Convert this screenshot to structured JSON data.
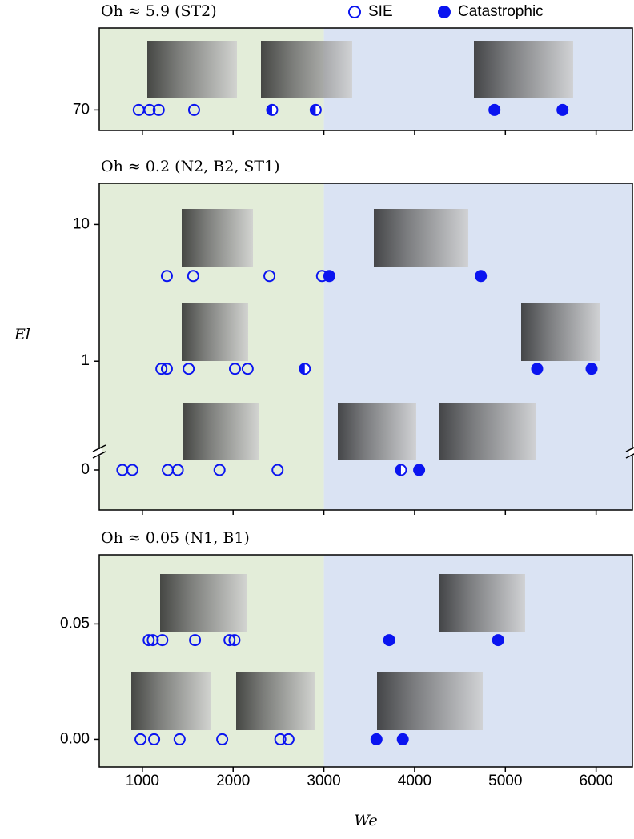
{
  "chart_data": [
    {
      "type": "scatter",
      "title": "Oh ≈ 5.9 (ST2)",
      "xlim": [
        525,
        6400
      ],
      "ylim": [
        68,
        78
      ],
      "yticks": [
        70
      ],
      "shade_split": 3000,
      "shade_colors": [
        "#e3edd9",
        "#dae3f3"
      ],
      "series": [
        {
          "name": "SIE",
          "marker": "open",
          "color": "#0a14f0",
          "x": [
            960,
            1080,
            1180,
            1570
          ],
          "y": [
            70,
            70,
            70,
            70
          ]
        },
        {
          "name": "Catastrophic",
          "marker": "filled",
          "color": "#0a14f0",
          "x": [
            4880,
            5630
          ],
          "y": [
            70,
            70
          ]
        },
        {
          "marker": "half",
          "color": "#0a14f0",
          "x": [
            2430,
            2910
          ],
          "y": [
            70,
            70
          ]
        }
      ]
    },
    {
      "type": "scatter",
      "title": "Oh ≈ 0.2 (N2, B2, ST1)",
      "y_label": "El",
      "xlim": [
        525,
        6400
      ],
      "ylim": [
        0.21,
        20
      ],
      "log_scale": true,
      "axis_break": true,
      "yticks": [
        10,
        1,
        0
      ],
      "shade_split": 3000,
      "shade_colors": [
        "#e3edd9",
        "#dae3f3"
      ],
      "series": [
        {
          "marker": "open",
          "color": "#0a14f0",
          "x": [
            1270,
            1560,
            2400,
            2980,
            1210,
            1270,
            1510,
            2020,
            2160,
            780,
            890,
            1280,
            1390,
            1850,
            2490
          ],
          "y": [
            4.2,
            4.2,
            4.2,
            4.2,
            0.88,
            0.88,
            0.88,
            0.88,
            0.88,
            0,
            0,
            0,
            0,
            0,
            0
          ]
        },
        {
          "marker": "filled",
          "color": "#0a14f0",
          "x": [
            3060,
            4730,
            5350,
            5950,
            4050
          ],
          "y": [
            4.2,
            4.2,
            0.88,
            0.88,
            0
          ]
        },
        {
          "marker": "half",
          "color": "#0a14f0",
          "x": [
            2790,
            3850
          ],
          "y": [
            0.88,
            0
          ]
        }
      ]
    },
    {
      "type": "scatter",
      "title": "Oh ≈ 0.05 (N1, B1)",
      "x_label": "We",
      "xlim": [
        525,
        6400
      ],
      "ylim": [
        -0.012,
        0.08
      ],
      "xticks": [
        1000,
        2000,
        3000,
        4000,
        5000,
        6000
      ],
      "yticks": [
        {
          "value": 0,
          "label": "0.00"
        },
        0.05
      ],
      "shade_split": 3000,
      "shade_colors": [
        "#e3edd9",
        "#dae3f3"
      ],
      "series": [
        {
          "marker": "open",
          "color": "#0a14f0",
          "x": [
            1070,
            1115,
            1220,
            1580,
            1960,
            2015,
            980,
            1130,
            1410,
            1880,
            2520,
            2610
          ],
          "y": [
            0.043,
            0.043,
            0.043,
            0.043,
            0.043,
            0.043,
            0,
            0,
            0,
            0,
            0,
            0
          ]
        },
        {
          "marker": "filled",
          "color": "#0a14f0",
          "x": [
            3720,
            4920,
            3580,
            3870
          ],
          "y": [
            0.043,
            0.043,
            0,
            0
          ]
        }
      ]
    }
  ]
}
